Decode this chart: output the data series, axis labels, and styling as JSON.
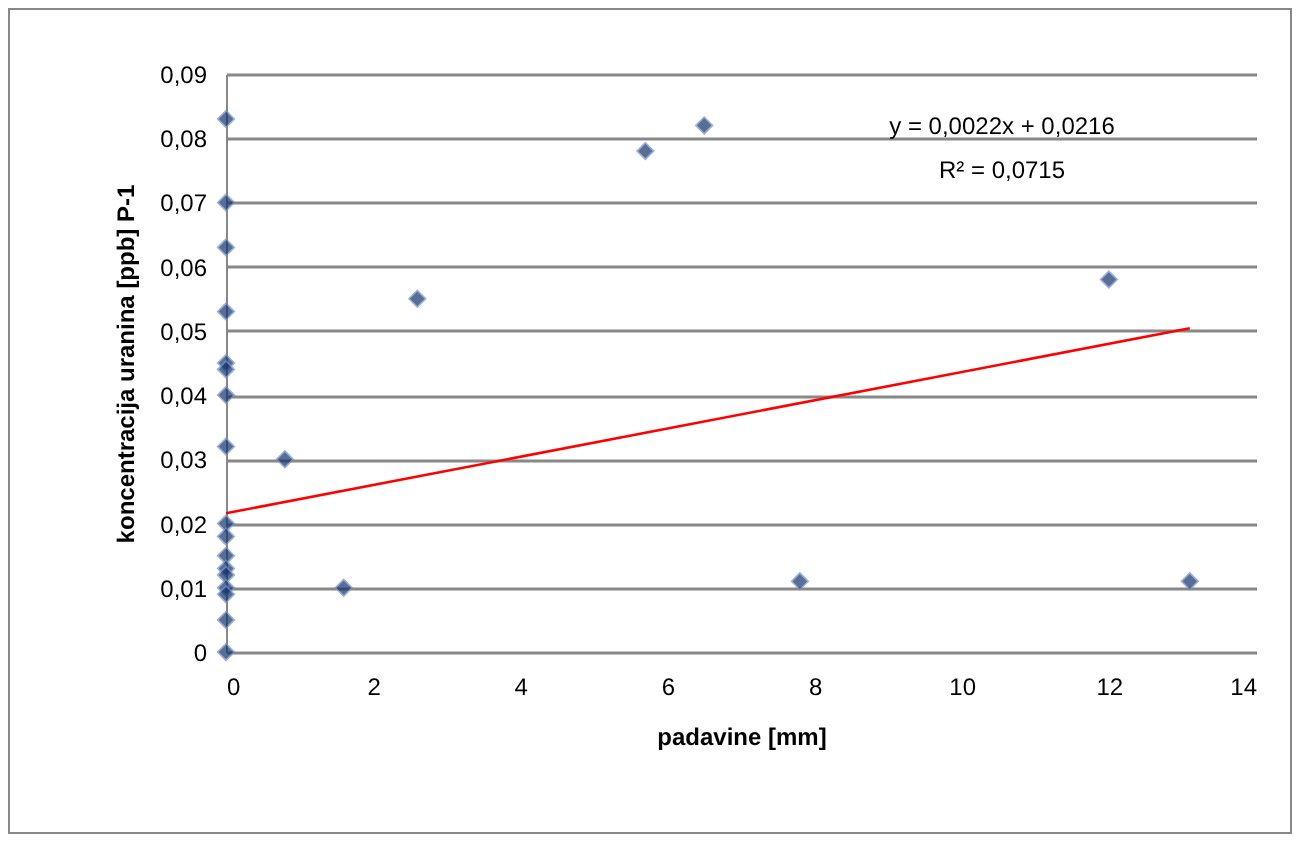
{
  "chart_data": {
    "type": "scatter",
    "xlabel": "padavine [mm]",
    "ylabel": "koncentracija uranina [ppb] P-1",
    "x": [
      0,
      0,
      0,
      0,
      0,
      0,
      0,
      0,
      0,
      0,
      0,
      0,
      0,
      0,
      0,
      0,
      0,
      0.8,
      1.6,
      2.6,
      5.7,
      6.5,
      7.8,
      12.0,
      13.1
    ],
    "series": [
      {
        "color": "#12326b",
        "marker": "diamond",
        "values": [
          0.083,
          0.07,
          0.063,
          0.053,
          0.045,
          0.044,
          0.04,
          0.032,
          0.02,
          0.018,
          0.015,
          0.013,
          0.012,
          0.01,
          0.009,
          0.005,
          0,
          0.03,
          0.01,
          0.055,
          0.078,
          0.082,
          0.011,
          0.058,
          0.011
        ]
      },
      {
        "type": "line",
        "color": "#ff0000",
        "x": [
          0,
          13.1
        ],
        "values": [
          0.0216,
          0.0504
        ]
      }
    ],
    "xlim": [
      0,
      14
    ],
    "xticks": [
      0,
      2,
      4,
      6,
      8,
      10,
      12,
      14
    ],
    "ylim": [
      0,
      0.09
    ],
    "yticks": [
      0,
      {
        "value": 0.01,
        "label": "0,01"
      },
      {
        "value": 0.02,
        "label": "0,02"
      },
      {
        "value": 0.03,
        "label": "0,03"
      },
      {
        "value": 0.04,
        "label": "0,04"
      },
      {
        "value": 0.05,
        "label": "0,05"
      },
      {
        "value": 0.06,
        "label": "0,06"
      },
      {
        "value": 0.07,
        "label": "0,07"
      },
      {
        "value": 0.08,
        "label": "0,08"
      },
      {
        "value": 0.09,
        "label": "0,09"
      }
    ],
    "grid": "y",
    "annotations": [
      "y = 0,0022x + 0,0216",
      "R² = 0,0715"
    ]
  }
}
